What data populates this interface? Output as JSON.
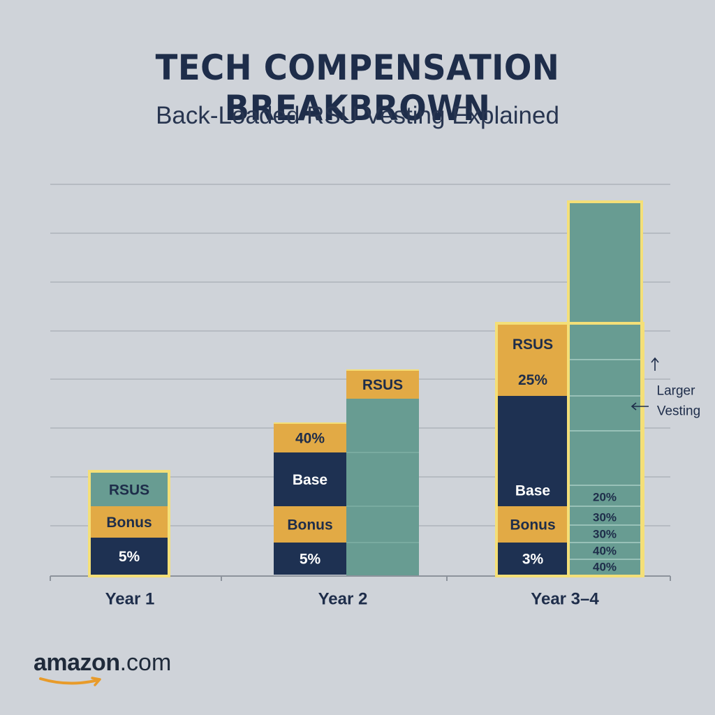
{
  "chart_data": {
    "type": "bar",
    "title": "TECH COMPENSATION BREAKBROWN",
    "subtitle": "Back-Loaded RSU Vesting Explained",
    "categories": [
      "Year 1",
      "Year 2",
      "Year 3-4"
    ],
    "display_categories": [
      "Year 1",
      "Year 2",
      "Year 3–4"
    ],
    "grid": true,
    "colors": {
      "navy": "#1e3152",
      "gold": "#e2aa45",
      "teal": "#689c92",
      "highlight": "#f4df78",
      "grid": "#aeb3bb",
      "text": "#1e2d4a"
    },
    "bars": [
      {
        "category": "Year 1",
        "highlighted": true,
        "segments": [
          {
            "label": "5%",
            "color": "navy"
          },
          {
            "label": "Bonus",
            "color": "gold"
          },
          {
            "label": "RSUS",
            "color": "teal"
          }
        ]
      },
      {
        "category": "Year 2",
        "highlighted": false,
        "left_segments": [
          {
            "label": "5%",
            "color": "navy"
          },
          {
            "label": "Bonus",
            "color": "gold"
          },
          {
            "label": "Base",
            "color": "navy"
          },
          {
            "label": "40%",
            "color": "gold"
          }
        ],
        "right_segments": [
          {
            "label": "",
            "color": "teal"
          },
          {
            "label": "RSUS",
            "color": "gold"
          }
        ]
      },
      {
        "category": "Year 3-4",
        "highlighted": true,
        "left_segments": [
          {
            "label": "3%",
            "color": "navy"
          },
          {
            "label": "Bonus",
            "color": "gold"
          },
          {
            "label": "Base",
            "color": "navy"
          },
          {
            "label": "25%",
            "color": "gold"
          },
          {
            "label": "RSUS",
            "color": "gold"
          }
        ],
        "right_segments": [
          {
            "label": "40%"
          },
          {
            "label": "40%"
          },
          {
            "label": "30%"
          },
          {
            "label": "30%"
          },
          {
            "label": "20%"
          }
        ]
      }
    ],
    "annotation": {
      "line1": "Larger",
      "line2": "Vesting"
    }
  },
  "logo": {
    "word": "amazon",
    "tld": ".com"
  }
}
